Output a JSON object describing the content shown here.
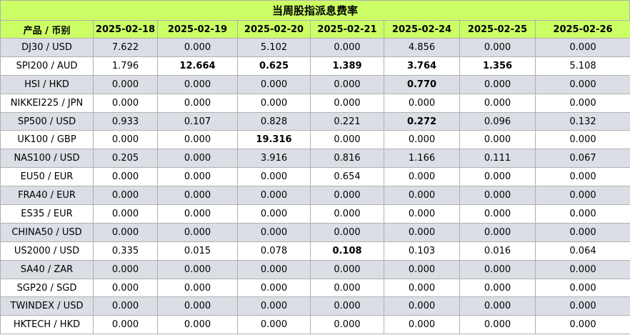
{
  "title": "当周股指派息费率",
  "headers": [
    "产品 / 币别",
    "2025-02-18",
    "2025-02-19",
    "2025-02-20",
    "2025-02-21",
    "2025-02-24",
    "2025-02-25",
    "2025-02-26"
  ],
  "rows": [
    {
      "product": "DJ30 / USD",
      "values": [
        "7.622",
        "0.000",
        "5.102",
        "0.000",
        "4.856",
        "0.000",
        "0.000"
      ],
      "bold": []
    },
    {
      "product": "SPI200 / AUD",
      "values": [
        "1.796",
        "12.664",
        "0.625",
        "1.389",
        "3.764",
        "1.356",
        "5.108"
      ],
      "bold": [
        1,
        2,
        3,
        4,
        5
      ]
    },
    {
      "product": "HSI / HKD",
      "values": [
        "0.000",
        "0.000",
        "0.000",
        "0.000",
        "0.770",
        "0.000",
        "0.000"
      ],
      "bold": [
        4
      ]
    },
    {
      "product": "NIKKEI225 / JPN",
      "values": [
        "0.000",
        "0.000",
        "0.000",
        "0.000",
        "0.000",
        "0.000",
        "0.000"
      ],
      "bold": []
    },
    {
      "product": "SP500 / USD",
      "values": [
        "0.933",
        "0.107",
        "0.828",
        "0.221",
        "0.272",
        "0.096",
        "0.132"
      ],
      "bold": [
        4
      ]
    },
    {
      "product": "UK100 / GBP",
      "values": [
        "0.000",
        "0.000",
        "19.316",
        "0.000",
        "0.000",
        "0.000",
        "0.000"
      ],
      "bold": [
        2
      ]
    },
    {
      "product": "NAS100 / USD",
      "values": [
        "0.205",
        "0.000",
        "3.916",
        "0.816",
        "1.166",
        "0.111",
        "0.067"
      ],
      "bold": []
    },
    {
      "product": "EU50 / EUR",
      "values": [
        "0.000",
        "0.000",
        "0.000",
        "0.654",
        "0.000",
        "0.000",
        "0.000"
      ],
      "bold": []
    },
    {
      "product": "FRA40 / EUR",
      "values": [
        "0.000",
        "0.000",
        "0.000",
        "0.000",
        "0.000",
        "0.000",
        "0.000"
      ],
      "bold": []
    },
    {
      "product": "ES35 / EUR",
      "values": [
        "0.000",
        "0.000",
        "0.000",
        "0.000",
        "0.000",
        "0.000",
        "0.000"
      ],
      "bold": []
    },
    {
      "product": "CHINA50 / USD",
      "values": [
        "0.000",
        "0.000",
        "0.000",
        "0.000",
        "0.000",
        "0.000",
        "0.000"
      ],
      "bold": []
    },
    {
      "product": "US2000 / USD",
      "values": [
        "0.335",
        "0.015",
        "0.078",
        "0.108",
        "0.103",
        "0.016",
        "0.064"
      ],
      "bold": [
        3
      ]
    },
    {
      "product": "SA40 / ZAR",
      "values": [
        "0.000",
        "0.000",
        "0.000",
        "0.000",
        "0.000",
        "0.000",
        "0.000"
      ],
      "bold": []
    },
    {
      "product": "SGP20 / SGD",
      "values": [
        "0.000",
        "0.000",
        "0.000",
        "0.000",
        "0.000",
        "0.000",
        "0.000"
      ],
      "bold": []
    },
    {
      "product": "TWINDEX / USD",
      "values": [
        "0.000",
        "0.000",
        "0.000",
        "0.000",
        "0.000",
        "0.000",
        "0.000"
      ],
      "bold": []
    },
    {
      "product": "HKTECH / HKD",
      "values": [
        "0.000",
        "0.000",
        "0.000",
        "0.000",
        "0.000",
        "0.000",
        "0.000"
      ],
      "bold": []
    }
  ],
  "colors": {
    "header_bg": "#ccff66",
    "odd_row_bg": "#dcdee6",
    "even_row_bg": "#ffffff",
    "border": "#b0b0b0"
  }
}
